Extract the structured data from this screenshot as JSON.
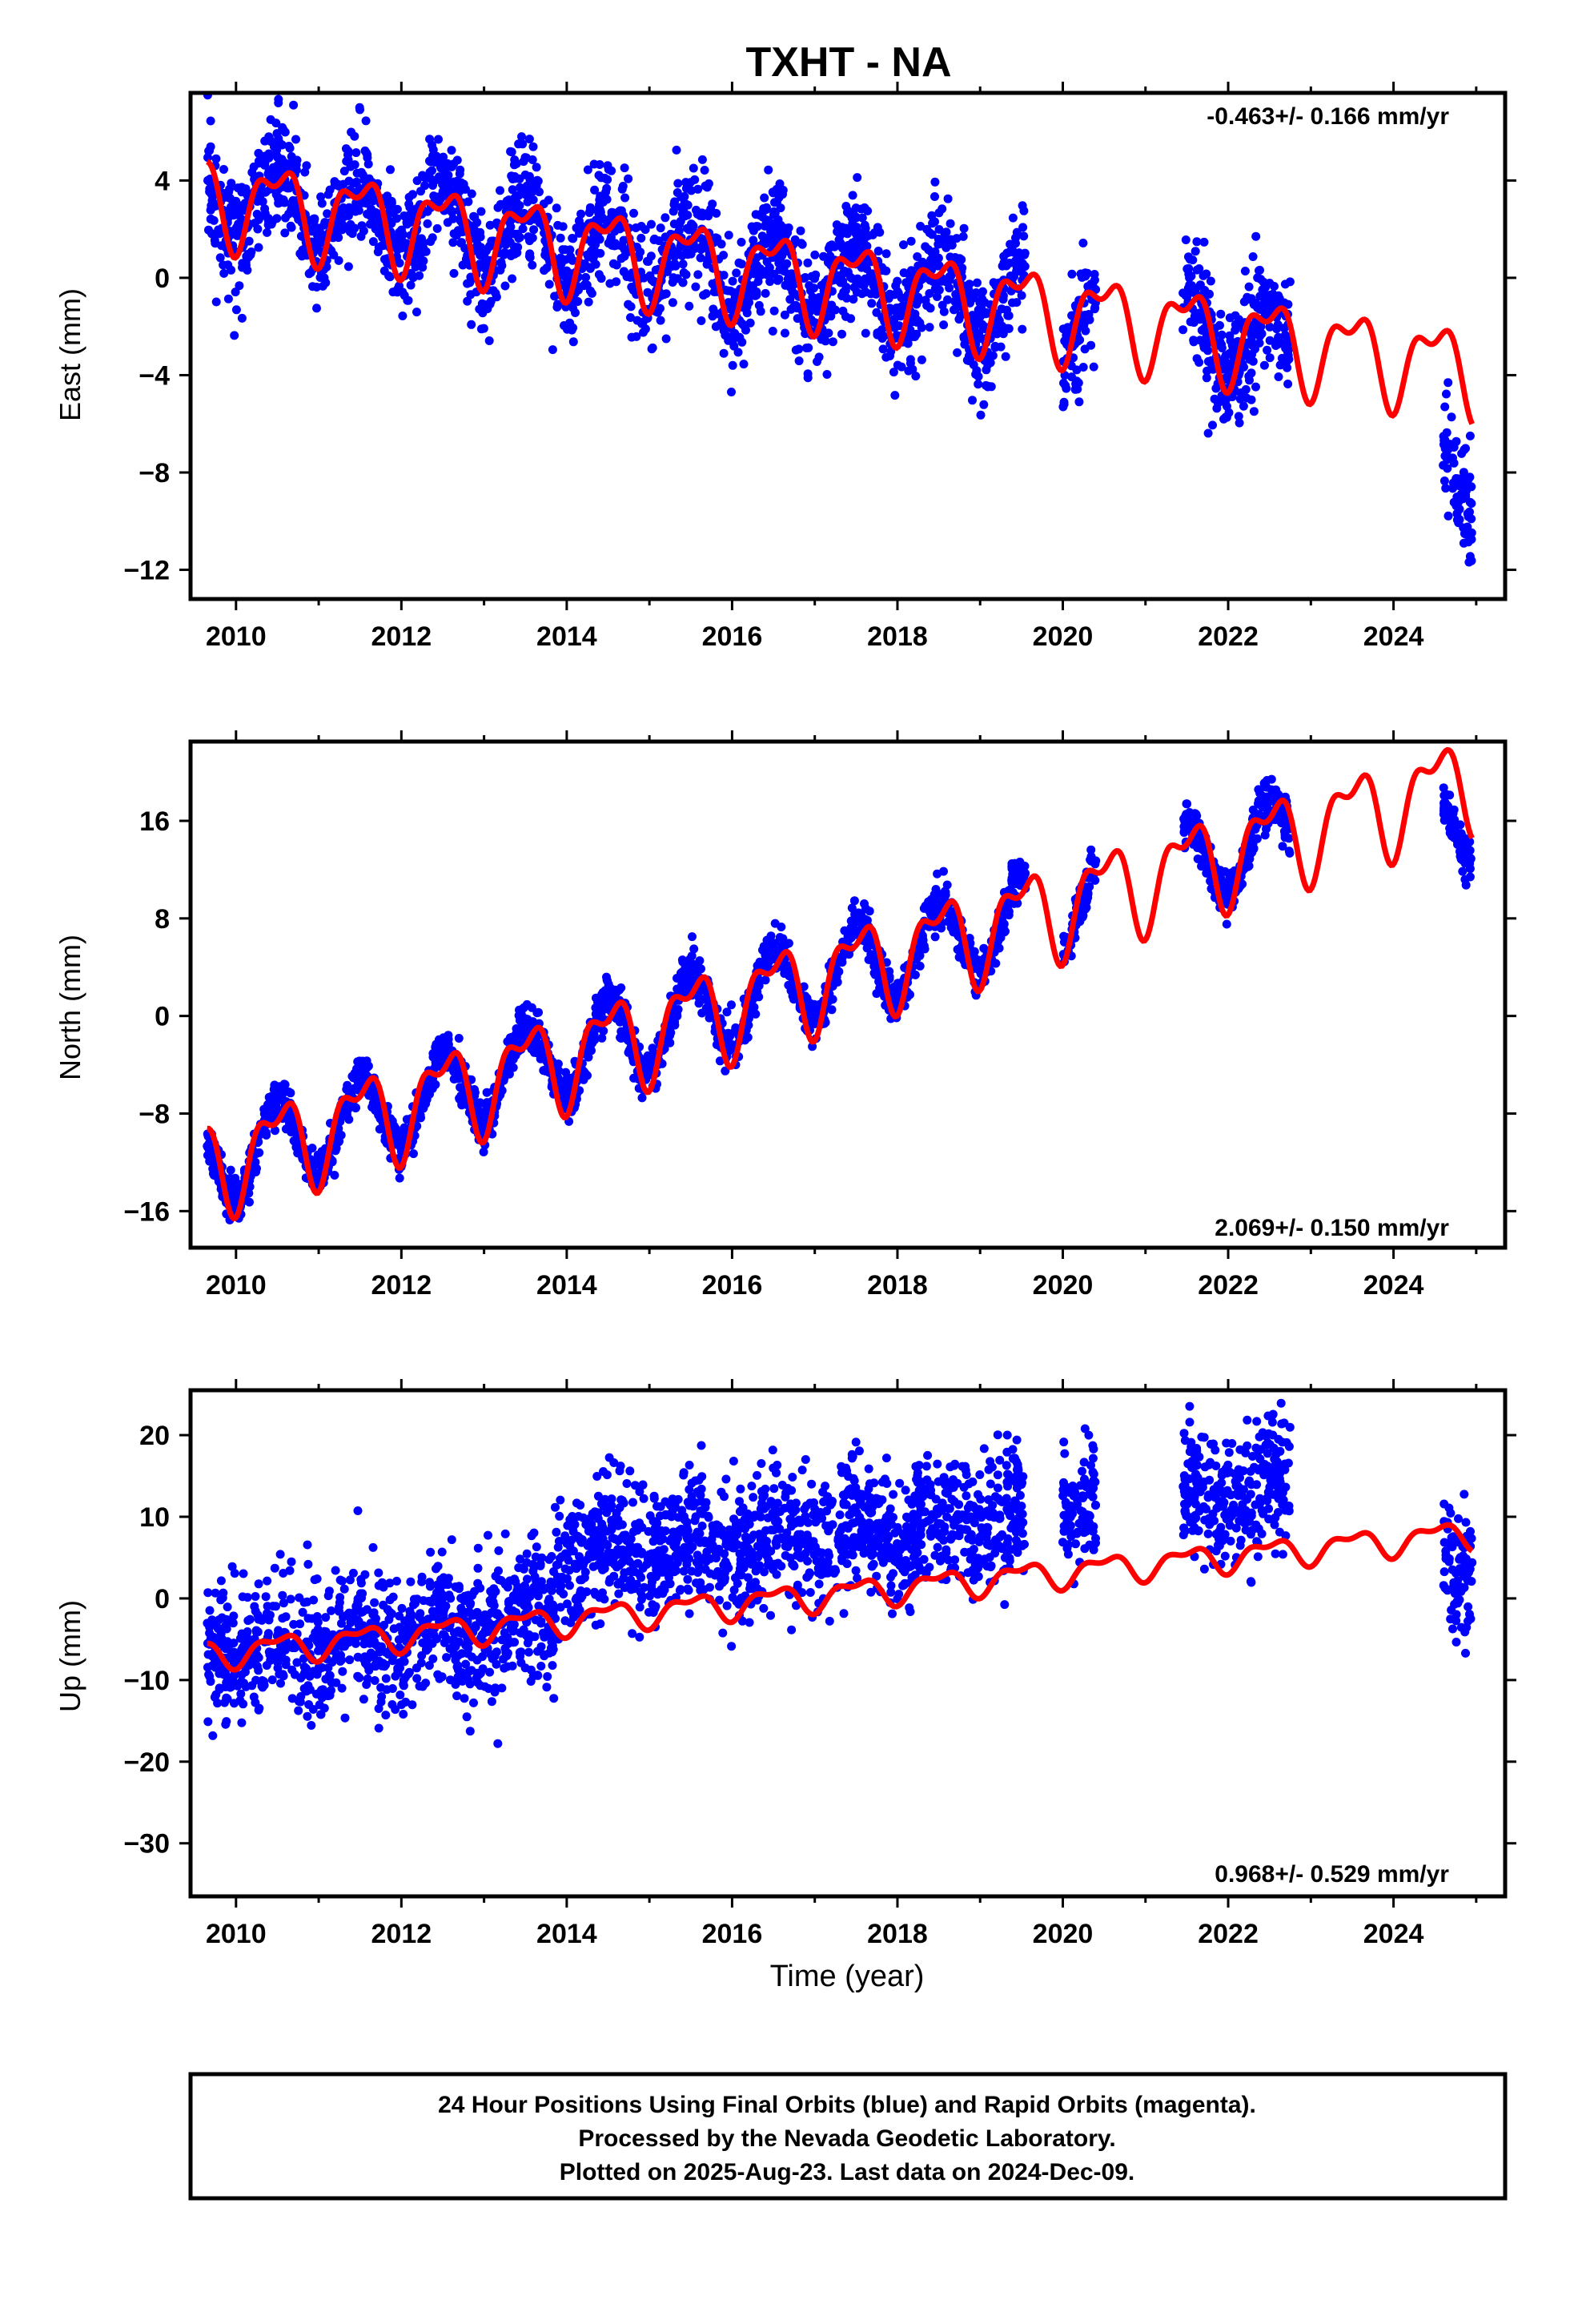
{
  "title": "TXHT - NA",
  "xlabel": "Time (year)",
  "footer": {
    "line1": "24 Hour Positions Using Final Orbits (blue) and Rapid Orbits (magenta).",
    "line2": "Processed by the Nevada Geodetic Laboratory.",
    "line3": "Plotted on 2025-Aug-23. Last data on 2024-Dec-09."
  },
  "colors": {
    "points": "#0000ff",
    "model": "#ff0000",
    "frame": "#000000"
  },
  "chart_data": [
    {
      "type": "scatter",
      "panel": "east",
      "ylabel": "East (mm)",
      "rate_label": "-0.463+/- 0.166 mm/yr",
      "rate_position": "top-right",
      "xlim": [
        2009.45,
        2025.35
      ],
      "ylim": [
        -13.2,
        7.6
      ],
      "xticks": [
        2010,
        2012,
        2014,
        2016,
        2018,
        2020,
        2022,
        2024
      ],
      "yticks": [
        4,
        0,
        -4,
        -8,
        -12
      ],
      "ytick_labels": [
        "4",
        "0",
        "−4",
        "−8",
        "−12"
      ],
      "series": [
        {
          "kind": "points",
          "segments": [
            [
              2009.65,
              2019.55
            ],
            [
              2020.0,
              2020.4
            ],
            [
              2021.45,
              2022.75
            ],
            [
              2024.6,
              2024.95
            ]
          ],
          "intercept": 3.2,
          "slope": -0.463,
          "annual": 1.6,
          "noise": 1.2,
          "segment_offsets": [
            0,
            0,
            0,
            -4.5
          ]
        },
        {
          "kind": "model",
          "intercept": 3.2,
          "slope": -0.463,
          "annual": 1.6,
          "x_range": [
            2009.65,
            2024.95
          ]
        }
      ]
    },
    {
      "type": "scatter",
      "panel": "north",
      "ylabel": "North (mm)",
      "rate_label": "2.069+/- 0.150 mm/yr",
      "rate_position": "bottom-right",
      "xlim": [
        2009.45,
        2025.35
      ],
      "ylim": [
        -19.0,
        22.5
      ],
      "xticks": [
        2010,
        2012,
        2014,
        2016,
        2018,
        2020,
        2022,
        2024
      ],
      "yticks": [
        16,
        8,
        0,
        -8,
        -16
      ],
      "ytick_labels": [
        "16",
        "8",
        "0",
        "−8",
        "−16"
      ],
      "series": [
        {
          "kind": "points",
          "segments": [
            [
              2009.65,
              2019.55
            ],
            [
              2020.0,
              2020.4
            ],
            [
              2021.45,
              2022.75
            ],
            [
              2024.6,
              2024.95
            ]
          ],
          "intercept": -11.5,
          "slope": 2.069,
          "annual": 3.4,
          "noise": 0.9,
          "segment_offsets": [
            0,
            0,
            0,
            -4.0
          ]
        },
        {
          "kind": "model",
          "intercept": -11.5,
          "slope": 2.069,
          "annual": 3.4,
          "x_range": [
            2009.65,
            2024.95
          ]
        }
      ]
    },
    {
      "type": "scatter",
      "panel": "up",
      "ylabel": "Up (mm)",
      "rate_label": "0.968+/- 0.529 mm/yr",
      "rate_position": "bottom-right",
      "xlim": [
        2009.45,
        2025.35
      ],
      "ylim": [
        -36.5,
        25.5
      ],
      "xticks": [
        2010,
        2012,
        2014,
        2016,
        2018,
        2020,
        2022,
        2024
      ],
      "yticks": [
        20,
        10,
        0,
        -10,
        -20,
        -30
      ],
      "ytick_labels": [
        "20",
        "10",
        "0",
        "−10",
        "−20",
        "−30"
      ],
      "series": [
        {
          "kind": "points",
          "segments": [
            [
              2009.65,
              2019.55
            ],
            [
              2020.0,
              2020.4
            ],
            [
              2021.45,
              2022.75
            ],
            [
              2024.6,
              2024.95
            ]
          ],
          "intercept": -6.5,
          "slope": 0.968,
          "annual": 1.5,
          "noise": 4.0,
          "segment_offsets": [
            0,
            0,
            0,
            -12.0
          ],
          "step": {
            "at": 2013.85,
            "size": 7.5
          }
        },
        {
          "kind": "model",
          "intercept": -6.5,
          "slope": 0.968,
          "annual": 1.5,
          "x_range": [
            2009.65,
            2024.95
          ]
        }
      ]
    }
  ]
}
